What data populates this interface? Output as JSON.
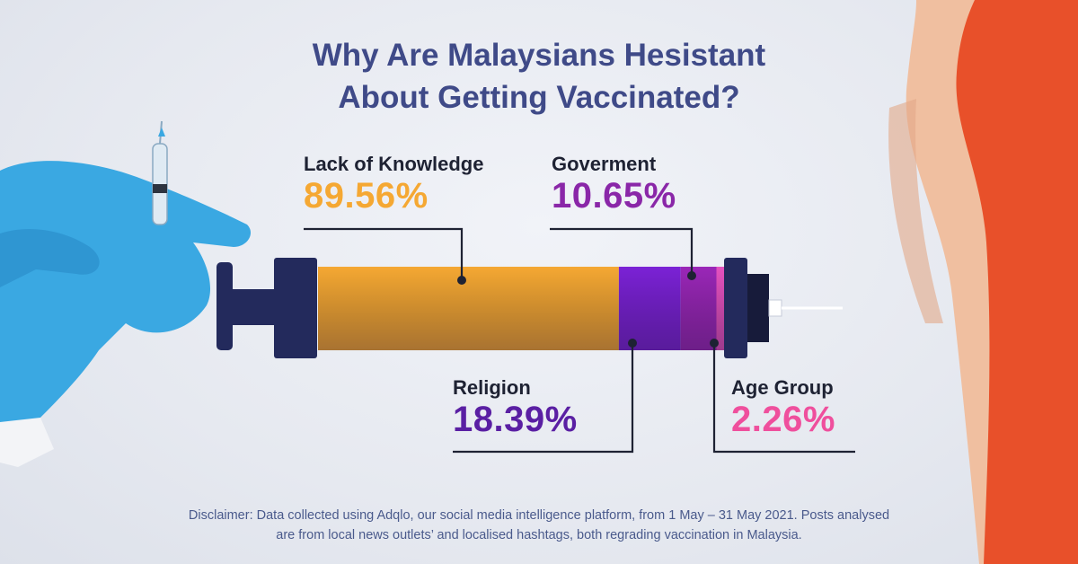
{
  "title": {
    "line1": "Why Are Malaysians Hesistant",
    "line2": "About Getting Vaccinated?"
  },
  "chart_data": {
    "type": "bar",
    "categories": [
      "Lack of Knowledge",
      "Religion",
      "Goverment",
      "Age Group"
    ],
    "values": [
      89.56,
      18.39,
      10.65,
      2.26
    ],
    "value_labels": [
      "89.56%",
      "18.39%",
      "10.65%",
      "2.26%"
    ],
    "unit": "%",
    "colors": [
      "#f5a833",
      "#7b22d6",
      "#9a27b8",
      "#e552c0"
    ],
    "label_colors": [
      "#f5a833",
      "#5a1fa3",
      "#8a27a8",
      "#ef4f9d"
    ],
    "style": "stacked segments inside a syringe barrel"
  },
  "disclaimer": {
    "line1": "Disclaimer: Data collected using Adqlo, our social media intelligence platform, from 1 May – 31 May 2021. Posts analysed",
    "line2": "are from local news outlets’ and localised hashtags, both regrading vaccination in Malaysia."
  },
  "colors": {
    "title": "#3f4a88",
    "syringe_dark": "#232a5c",
    "glove": "#3aa8e2",
    "shirt": "#e8502a",
    "skin": "#f0bfa0"
  }
}
